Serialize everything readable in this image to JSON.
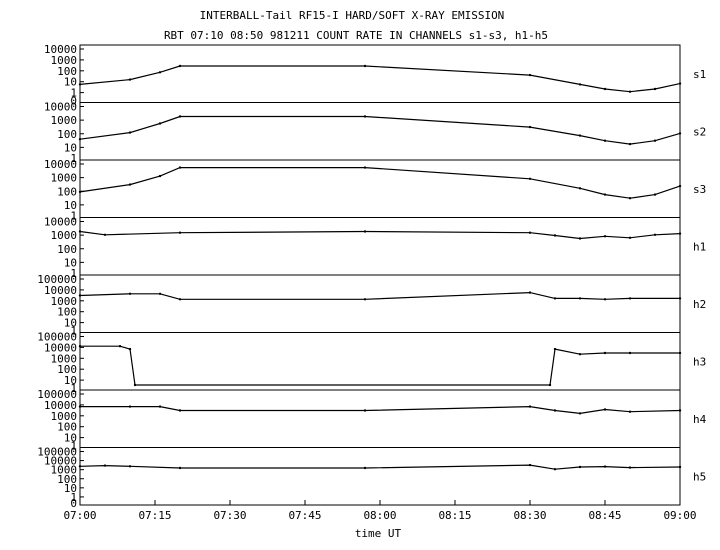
{
  "title_line1": "INTERBALL-Tail RF15-I HARD/SOFT X-RAY EMISSION",
  "title_line2": "RBT 07:10 08:50 981211  COUNT RATE IN CHANNELS s1-s3, h1-h5",
  "x_axis_label": "time UT",
  "x_ticks": [
    "07:00",
    "07:15",
    "07:30",
    "07:45",
    "08:00",
    "08:15",
    "08:30",
    "08:45",
    "09:00"
  ],
  "chart_data": {
    "type": "line",
    "title": "INTERBALL-Tail RF15-I HARD/SOFT X-RAY EMISSION",
    "subtitle": "RBT 07:10 08:50 981211  COUNT RATE IN CHANNELS s1-s3, h1-h5",
    "xlabel": "time UT",
    "xlim": [
      "07:00",
      "09:00"
    ],
    "yscale": "log",
    "grid": false,
    "panels": [
      {
        "name": "s1",
        "ylim": [
          1,
          10000
        ],
        "yticks": [
          "10000",
          "1000",
          "100",
          "10",
          "1",
          "0"
        ],
        "x": [
          "07:00",
          "07:10",
          "07:16",
          "07:20",
          "07:57",
          "08:30",
          "08:40",
          "08:45",
          "08:50",
          "08:55",
          "09:00"
        ],
        "values": [
          12,
          30,
          120,
          400,
          400,
          70,
          12,
          5,
          3,
          5,
          14
        ]
      },
      {
        "name": "s2",
        "ylim": [
          1,
          10000
        ],
        "yticks": [
          "10000",
          "1000",
          "100",
          "10",
          "1"
        ],
        "x": [
          "07:00",
          "07:10",
          "07:16",
          "07:20",
          "07:57",
          "08:30",
          "08:40",
          "08:45",
          "08:50",
          "08:55",
          "09:00"
        ],
        "values": [
          20,
          70,
          400,
          1500,
          1500,
          200,
          40,
          15,
          8,
          15,
          60
        ]
      },
      {
        "name": "s3",
        "ylim": [
          1,
          10000
        ],
        "yticks": [
          "10000",
          "1000",
          "100",
          "10",
          "1"
        ],
        "x": [
          "07:00",
          "07:10",
          "07:16",
          "07:20",
          "07:57",
          "08:30",
          "08:40",
          "08:45",
          "08:50",
          "08:55",
          "09:00"
        ],
        "values": [
          50,
          200,
          1000,
          5000,
          5000,
          600,
          100,
          30,
          15,
          30,
          150
        ]
      },
      {
        "name": "h1",
        "ylim": [
          1,
          10000
        ],
        "yticks": [
          "10000",
          "1000",
          "100",
          "10",
          "1"
        ],
        "x": [
          "07:00",
          "07:05",
          "07:20",
          "07:57",
          "08:30",
          "08:35",
          "08:40",
          "08:45",
          "08:50",
          "08:55",
          "09:00"
        ],
        "values": [
          1500,
          800,
          1200,
          1500,
          1200,
          700,
          400,
          600,
          450,
          800,
          1000
        ]
      },
      {
        "name": "h2",
        "ylim": [
          1,
          100000
        ],
        "yticks": [
          "100000",
          "10000",
          "1000",
          "100",
          "10",
          "1"
        ],
        "x": [
          "07:00",
          "07:10",
          "07:16",
          "07:20",
          "07:57",
          "08:30",
          "08:35",
          "08:40",
          "08:45",
          "08:50",
          "09:00"
        ],
        "values": [
          2000,
          3000,
          3000,
          800,
          800,
          4000,
          1000,
          1000,
          800,
          1000,
          1000
        ]
      },
      {
        "name": "h3",
        "ylim": [
          1,
          100000
        ],
        "yticks": [
          "100000",
          "10000",
          "1000",
          "100",
          "10",
          "1"
        ],
        "x": [
          "07:00",
          "07:08",
          "07:10",
          "07:11",
          "08:34",
          "08:35",
          "08:40",
          "08:45",
          "08:50",
          "09:00"
        ],
        "values": [
          10000,
          10000,
          5000,
          1,
          1,
          5000,
          1500,
          2000,
          2000,
          2000
        ]
      },
      {
        "name": "h4",
        "ylim": [
          1,
          100000
        ],
        "yticks": [
          "100000",
          "10000",
          "1000",
          "100",
          "10",
          "1"
        ],
        "x": [
          "07:00",
          "07:10",
          "07:16",
          "07:20",
          "07:57",
          "08:30",
          "08:35",
          "08:40",
          "08:45",
          "08:50",
          "09:00"
        ],
        "values": [
          5000,
          5000,
          5000,
          2000,
          2000,
          5000,
          2000,
          1000,
          2500,
          1500,
          2000
        ]
      },
      {
        "name": "h5",
        "ylim": [
          1,
          100000
        ],
        "yticks": [
          "100000",
          "10000",
          "1000",
          "100",
          "10",
          "1",
          "0"
        ],
        "x": [
          "07:00",
          "07:05",
          "07:10",
          "07:20",
          "07:57",
          "08:30",
          "08:35",
          "08:40",
          "08:45",
          "08:50",
          "09:00"
        ],
        "values": [
          3000,
          3500,
          3000,
          2000,
          2000,
          4000,
          1500,
          2500,
          2800,
          2200,
          2500
        ]
      }
    ]
  }
}
